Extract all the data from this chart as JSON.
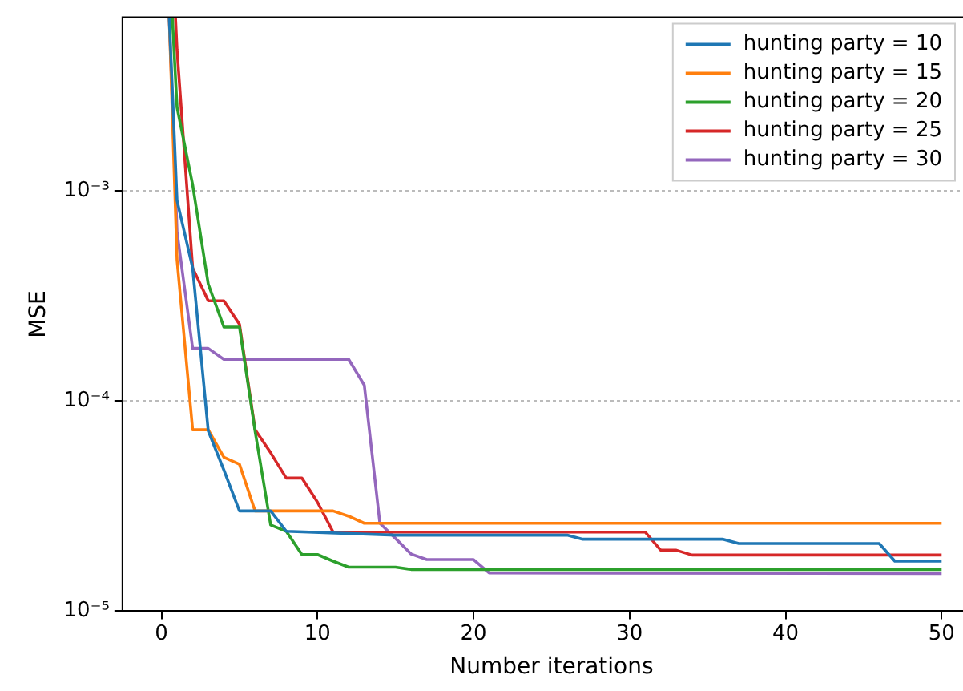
{
  "chart_data": {
    "type": "line",
    "xlabel": "Number iterations",
    "ylabel": "MSE",
    "xlim": [
      -2.5,
      52.5
    ],
    "xticks": [
      0,
      10,
      20,
      30,
      40,
      50
    ],
    "ylim": [
      1e-05,
      0.0067
    ],
    "yticks": [
      {
        "value": 1e-05,
        "label": "10⁻⁵"
      },
      {
        "value": 0.0001,
        "label": "10⁻⁴"
      },
      {
        "value": 0.001,
        "label": "10⁻³"
      }
    ],
    "log": "y",
    "grid": "y",
    "legend": "top right",
    "marker": "none",
    "line_style": "solid",
    "series": [
      {
        "name": "hunting party = 10",
        "color": "#1f77b4",
        "x": [
          0.5,
          1,
          2,
          3,
          4,
          5,
          7,
          8,
          15,
          26,
          27,
          36,
          37,
          46,
          47,
          50
        ],
        "values": [
          0.0067,
          0.0009,
          0.00043,
          7.2e-05,
          4.7e-05,
          3e-05,
          3e-05,
          2.4e-05,
          2.3e-05,
          2.3e-05,
          2.2e-05,
          2.2e-05,
          2.1e-05,
          2.1e-05,
          1.73e-05,
          1.73e-05
        ]
      },
      {
        "name": "hunting party = 15",
        "color": "#ff7f0e",
        "x": [
          0.5,
          1,
          2,
          3,
          4,
          5,
          6,
          11,
          12,
          13,
          50
        ],
        "values": [
          0.0067,
          0.00047,
          7.3e-05,
          7.3e-05,
          5.4e-05,
          5e-05,
          3e-05,
          3e-05,
          2.83e-05,
          2.62e-05,
          2.62e-05
        ]
      },
      {
        "name": "hunting party = 20",
        "color": "#2ca02c",
        "x": [
          0.7,
          1,
          2,
          3,
          4,
          5,
          6,
          7,
          8,
          9,
          10,
          11,
          12,
          15,
          16,
          50
        ],
        "values": [
          0.0067,
          0.0025,
          0.00107,
          0.00036,
          0.000225,
          0.000225,
          7.2e-05,
          2.57e-05,
          2.4e-05,
          1.86e-05,
          1.86e-05,
          1.73e-05,
          1.62e-05,
          1.62e-05,
          1.58e-05,
          1.58e-05
        ]
      },
      {
        "name": "hunting party = 25",
        "color": "#d62728",
        "x": [
          0.9,
          1,
          2,
          3,
          4,
          5,
          6,
          7,
          8,
          9,
          10,
          11,
          31,
          32,
          33,
          34,
          50
        ],
        "values": [
          0.0067,
          0.0047,
          0.00043,
          0.0003,
          0.0003,
          0.000232,
          7.3e-05,
          5.67e-05,
          4.3e-05,
          4.3e-05,
          3.3e-05,
          2.38e-05,
          2.38e-05,
          1.95e-05,
          1.95e-05,
          1.85e-05,
          1.85e-05
        ]
      },
      {
        "name": "hunting party = 30",
        "color": "#9467bd",
        "x": [
          0.5,
          1,
          2,
          3,
          4,
          12,
          13,
          14,
          15,
          16,
          17,
          20,
          21,
          50
        ],
        "values": [
          0.0067,
          0.00064,
          0.000178,
          0.000178,
          0.000158,
          0.000158,
          0.000119,
          2.62e-05,
          2.22e-05,
          1.87e-05,
          1.76e-05,
          1.76e-05,
          1.52e-05,
          1.51e-05
        ]
      }
    ]
  }
}
